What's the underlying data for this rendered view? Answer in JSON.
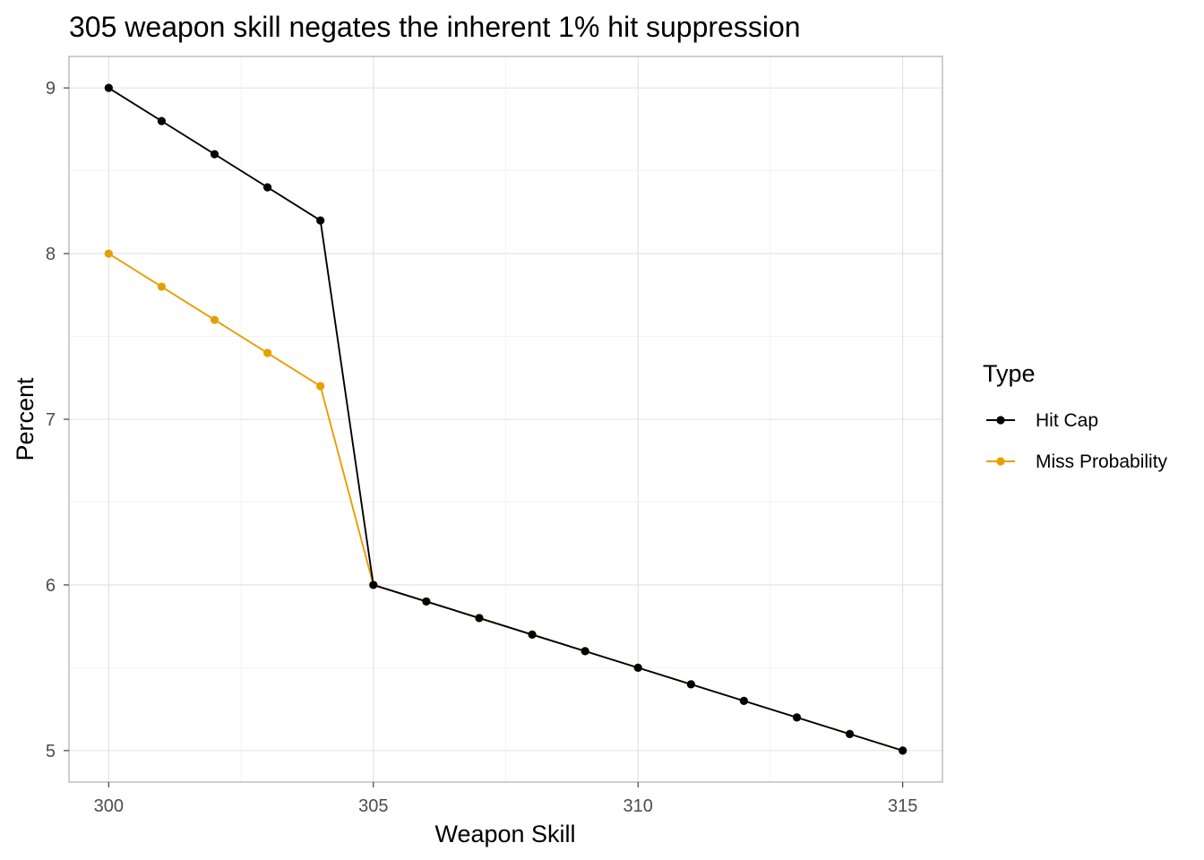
{
  "chart_data": {
    "type": "line",
    "title": "305 weapon skill negates the inherent 1% hit suppression",
    "xlabel": "Weapon Skill",
    "ylabel": "Percent",
    "xlim": [
      299.25,
      315.75
    ],
    "ylim": [
      4.81,
      9.19
    ],
    "x_ticks": [
      "300",
      "305",
      "310",
      "315"
    ],
    "y_ticks": [
      "5",
      "6",
      "7",
      "8",
      "9"
    ],
    "grid": true,
    "legend": {
      "title": "Type",
      "position": "right"
    },
    "x": [
      300,
      301,
      302,
      303,
      304,
      305,
      306,
      307,
      308,
      309,
      310,
      311,
      312,
      313,
      314,
      315
    ],
    "series": [
      {
        "name": "Miss Probability",
        "color": "#E69F00",
        "values": [
          8.0,
          7.8,
          7.6,
          7.4,
          7.2,
          6.0,
          5.9,
          5.8,
          5.7,
          5.6,
          5.5,
          5.4,
          5.3,
          5.2,
          5.1,
          5.0
        ]
      },
      {
        "name": "Hit Cap",
        "color": "#000000",
        "values": [
          9.0,
          8.8,
          8.6,
          8.4,
          8.2,
          6.0,
          5.9,
          5.8,
          5.7,
          5.6,
          5.5,
          5.4,
          5.3,
          5.2,
          5.1,
          5.0
        ]
      }
    ],
    "legend_order": [
      "Hit Cap",
      "Miss Probability"
    ]
  }
}
